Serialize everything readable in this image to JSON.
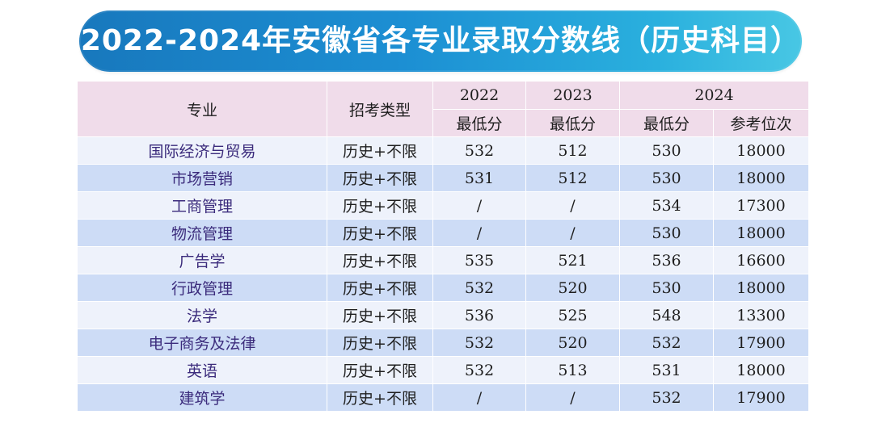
{
  "title": "2022-2024年安徽省各专业录取分数线（历史科目）",
  "colors": {
    "banner_start": "#1878bd",
    "banner_end": "#48c7e4",
    "header_bg": "#f0dcea",
    "row_light": "#eef2fb",
    "row_dark": "#cddcf6",
    "major_text": "#3b2b7c"
  },
  "table": {
    "headers": {
      "major": "专业",
      "type": "招考类型",
      "year_2022": "2022",
      "year_2023": "2023",
      "year_2024": "2024",
      "min_score_2022": "最低分",
      "min_score_2023": "最低分",
      "min_score_2024": "最低分",
      "rank_2024": "参考位次"
    },
    "rows": [
      {
        "major": "国际经济与贸易",
        "type": "历史+不限",
        "s2022": "532",
        "s2023": "512",
        "s2024": "530",
        "rank": "18000"
      },
      {
        "major": "市场营销",
        "type": "历史+不限",
        "s2022": "531",
        "s2023": "512",
        "s2024": "530",
        "rank": "18000"
      },
      {
        "major": "工商管理",
        "type": "历史+不限",
        "s2022": "/",
        "s2023": "/",
        "s2024": "534",
        "rank": "17300"
      },
      {
        "major": "物流管理",
        "type": "历史+不限",
        "s2022": "/",
        "s2023": "/",
        "s2024": "530",
        "rank": "18000"
      },
      {
        "major": "广告学",
        "type": "历史+不限",
        "s2022": "535",
        "s2023": "521",
        "s2024": "536",
        "rank": "16600"
      },
      {
        "major": "行政管理",
        "type": "历史+不限",
        "s2022": "532",
        "s2023": "520",
        "s2024": "530",
        "rank": "18000"
      },
      {
        "major": "法学",
        "type": "历史+不限",
        "s2022": "536",
        "s2023": "525",
        "s2024": "548",
        "rank": "13300"
      },
      {
        "major": "电子商务及法律",
        "type": "历史+不限",
        "s2022": "532",
        "s2023": "520",
        "s2024": "532",
        "rank": "17900"
      },
      {
        "major": "英语",
        "type": "历史+不限",
        "s2022": "532",
        "s2023": "513",
        "s2024": "531",
        "rank": "18000"
      },
      {
        "major": "建筑学",
        "type": "历史+不限",
        "s2022": "/",
        "s2023": "/",
        "s2024": "532",
        "rank": "17900"
      }
    ]
  }
}
